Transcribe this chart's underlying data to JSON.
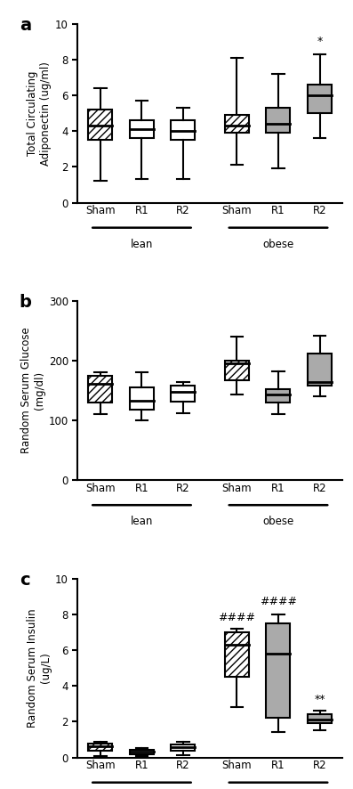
{
  "panel_a": {
    "label": "a",
    "ylabel": "Total Circulating\nAdiponectin (ug/ml)",
    "ylim": [
      0,
      10
    ],
    "yticks": [
      0,
      2,
      4,
      6,
      8,
      10
    ],
    "boxes": [
      {
        "q1": 3.5,
        "median": 4.3,
        "q3": 5.2,
        "whislo": 1.2,
        "whishi": 6.4,
        "style": "hatch"
      },
      {
        "q1": 3.6,
        "median": 4.1,
        "q3": 4.6,
        "whislo": 1.3,
        "whishi": 5.7,
        "style": "white"
      },
      {
        "q1": 3.5,
        "median": 4.0,
        "q3": 4.6,
        "whislo": 1.3,
        "whishi": 5.3,
        "style": "white"
      },
      {
        "q1": 3.9,
        "median": 4.3,
        "q3": 4.9,
        "whislo": 2.1,
        "whishi": 8.1,
        "style": "hatch"
      },
      {
        "q1": 3.9,
        "median": 4.4,
        "q3": 5.3,
        "whislo": 1.9,
        "whishi": 7.2,
        "style": "gray"
      },
      {
        "q1": 5.0,
        "median": 6.0,
        "q3": 6.6,
        "whislo": 3.6,
        "whishi": 8.3,
        "style": "gray"
      }
    ],
    "annotations": [
      {
        "text": "*",
        "xi": 5,
        "y": 8.7
      }
    ]
  },
  "panel_b": {
    "label": "b",
    "ylabel": "Random Serum Glucose\n(mg/dl)",
    "ylim": [
      0,
      300
    ],
    "yticks": [
      0,
      100,
      200,
      300
    ],
    "boxes": [
      {
        "q1": 130,
        "median": 162,
        "q3": 175,
        "whislo": 110,
        "whishi": 180,
        "style": "hatch"
      },
      {
        "q1": 118,
        "median": 133,
        "q3": 155,
        "whislo": 100,
        "whishi": 180,
        "style": "white"
      },
      {
        "q1": 132,
        "median": 148,
        "q3": 158,
        "whislo": 112,
        "whishi": 165,
        "style": "white"
      },
      {
        "q1": 168,
        "median": 196,
        "q3": 200,
        "whislo": 143,
        "whishi": 240,
        "style": "hatch"
      },
      {
        "q1": 130,
        "median": 143,
        "q3": 153,
        "whislo": 110,
        "whishi": 182,
        "style": "gray"
      },
      {
        "q1": 158,
        "median": 164,
        "q3": 212,
        "whislo": 140,
        "whishi": 242,
        "style": "gray"
      }
    ],
    "annotations": []
  },
  "panel_c": {
    "label": "c",
    "ylabel": "Random Serum Insulin\n(ug/L)",
    "ylim": [
      0,
      10
    ],
    "yticks": [
      0,
      2,
      4,
      6,
      8,
      10
    ],
    "boxes": [
      {
        "q1": 0.38,
        "median": 0.63,
        "q3": 0.75,
        "whislo": 0.08,
        "whishi": 0.85,
        "style": "hatch"
      },
      {
        "q1": 0.18,
        "median": 0.33,
        "q3": 0.43,
        "whislo": 0.08,
        "whishi": 0.53,
        "style": "white"
      },
      {
        "q1": 0.38,
        "median": 0.58,
        "q3": 0.73,
        "whislo": 0.13,
        "whishi": 0.85,
        "style": "white"
      },
      {
        "q1": 4.5,
        "median": 6.3,
        "q3": 7.0,
        "whislo": 2.8,
        "whishi": 7.2,
        "style": "hatch"
      },
      {
        "q1": 2.2,
        "median": 5.8,
        "q3": 7.5,
        "whislo": 1.4,
        "whishi": 8.0,
        "style": "gray"
      },
      {
        "q1": 1.9,
        "median": 2.1,
        "q3": 2.4,
        "whislo": 1.5,
        "whishi": 2.6,
        "style": "gray"
      }
    ],
    "annotations": [
      {
        "text": "####",
        "xi": 3,
        "y": 7.5
      },
      {
        "text": "####",
        "xi": 4,
        "y": 8.4
      },
      {
        "text": "**",
        "xi": 5,
        "y": 2.9
      }
    ]
  },
  "hatch_pattern": "////",
  "gray_color": "#aaaaaa",
  "linewidth": 1.5,
  "box_width": 0.58,
  "positions": [
    0,
    1,
    2,
    3.3,
    4.3,
    5.3
  ],
  "lean_label": "lean",
  "obese_label": "obese",
  "group_labels": [
    "Sham",
    "R1",
    "R2",
    "Sham",
    "R1",
    "R2"
  ]
}
